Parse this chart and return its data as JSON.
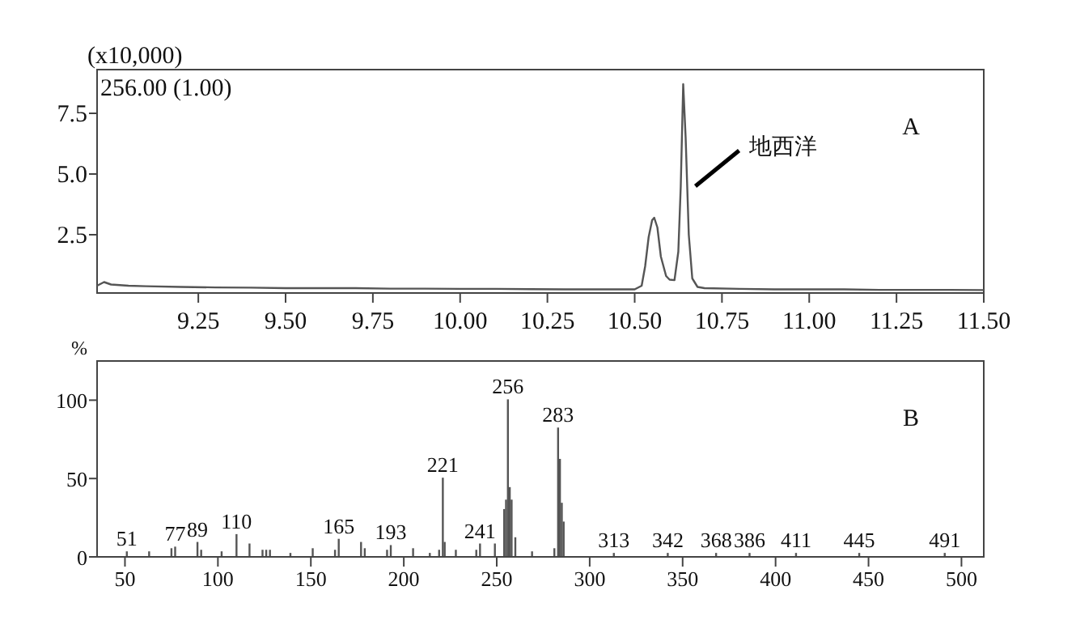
{
  "chart_data": [
    {
      "type": "line",
      "title": "A",
      "ylabel": "(x10,000)",
      "xlim": [
        8.96,
        11.5
      ],
      "ylim": [
        0.1,
        9.3
      ],
      "xticks": [
        {
          "value": 9.25,
          "label": "9.25"
        },
        {
          "value": 9.5,
          "label": "9.50"
        },
        {
          "value": 9.75,
          "label": "9.75"
        },
        {
          "value": 10.0,
          "label": "10.00"
        },
        {
          "value": 10.25,
          "label": "10.25"
        },
        {
          "value": 10.5,
          "label": "10.50"
        },
        {
          "value": 10.75,
          "label": "10.75"
        },
        {
          "value": 11.0,
          "label": "11.00"
        },
        {
          "value": 11.25,
          "label": "11.25"
        },
        {
          "value": 11.5,
          "label": "11.50"
        }
      ],
      "yticks": [
        2.5,
        {
          "value": 5,
          "label": "5.0"
        },
        7.5
      ],
      "annotations": [
        "256.00 (1.00)",
        {
          "text": "地西洋",
          "x": 10.66,
          "y": 4.5
        }
      ],
      "series": [
        {
          "color": "#555555",
          "x": [
            8.96,
            8.98,
            9.0,
            9.05,
            9.1,
            9.2,
            9.3,
            9.4,
            9.5,
            9.6,
            9.7,
            9.8,
            9.9,
            10.0,
            10.1,
            10.2,
            10.3,
            10.4,
            10.45,
            10.5,
            10.52,
            10.53,
            10.54,
            10.55,
            10.556,
            10.565,
            10.575,
            10.59,
            10.6,
            10.614,
            10.625,
            10.632,
            10.639,
            10.646,
            10.655,
            10.665,
            10.68,
            10.7,
            10.8,
            10.9,
            11.0,
            11.1,
            11.2,
            11.3,
            11.4,
            11.5
          ],
          "values": [
            0.4,
            0.55,
            0.45,
            0.4,
            0.38,
            0.35,
            0.33,
            0.32,
            0.3,
            0.3,
            0.3,
            0.28,
            0.28,
            0.27,
            0.27,
            0.26,
            0.25,
            0.25,
            0.25,
            0.25,
            0.4,
            1.2,
            2.4,
            3.1,
            3.2,
            2.8,
            1.6,
            0.8,
            0.65,
            0.63,
            1.8,
            4.5,
            8.7,
            6.5,
            2.5,
            0.7,
            0.35,
            0.3,
            0.27,
            0.25,
            0.25,
            0.25,
            0.23,
            0.23,
            0.23,
            0.22
          ]
        }
      ]
    },
    {
      "type": "bar",
      "title": "B",
      "ylabel": "%",
      "xlim": [
        35,
        512
      ],
      "ylim": [
        0,
        125
      ],
      "xticks": [
        50,
        100,
        150,
        200,
        250,
        300,
        350,
        400,
        450,
        500
      ],
      "yticks": [
        0,
        50,
        100
      ],
      "x": [
        51,
        63,
        75,
        77,
        89,
        91,
        102,
        110,
        117,
        124,
        126,
        128,
        139,
        151,
        163,
        165,
        177,
        179,
        191,
        193,
        205,
        214,
        219,
        221,
        222,
        228,
        239,
        241,
        249,
        254,
        255,
        256,
        257,
        258,
        260,
        269,
        281,
        283,
        284,
        285,
        286,
        313,
        342,
        368,
        386,
        411,
        445,
        491
      ],
      "series": [
        {
          "color": "#555555",
          "values": [
            3,
            3,
            5,
            6,
            9,
            4,
            3,
            14,
            8,
            4,
            4,
            4,
            2,
            5,
            4,
            11,
            9,
            5,
            4,
            7,
            5,
            2,
            4,
            50,
            9,
            4,
            4,
            8,
            8,
            30,
            36,
            100,
            44,
            36,
            12,
            3,
            5,
            82,
            62,
            34,
            22,
            2,
            2,
            2,
            2,
            2,
            2,
            2
          ]
        }
      ],
      "annotations": [
        {
          "text": "51",
          "x": 51,
          "y": 3
        },
        {
          "text": "77",
          "x": 77,
          "y": 6
        },
        {
          "text": "89",
          "x": 89,
          "y": 9
        },
        {
          "text": "110",
          "x": 110,
          "y": 14
        },
        {
          "text": "165",
          "x": 165,
          "y": 11
        },
        {
          "text": "193",
          "x": 193,
          "y": 7
        },
        {
          "text": "221",
          "x": 221,
          "y": 50
        },
        {
          "text": "241",
          "x": 241,
          "y": 8
        },
        {
          "text": "256",
          "x": 256,
          "y": 100
        },
        {
          "text": "283",
          "x": 283,
          "y": 82
        },
        {
          "text": "313",
          "x": 313,
          "y": 2
        },
        {
          "text": "342",
          "x": 342,
          "y": 2
        },
        {
          "text": "368",
          "x": 368,
          "y": 2
        },
        {
          "text": "386",
          "x": 386,
          "y": 2
        },
        {
          "text": "411",
          "x": 411,
          "y": 2
        },
        {
          "text": "445",
          "x": 445,
          "y": 2
        },
        {
          "text": "491",
          "x": 491,
          "y": 2
        }
      ]
    }
  ]
}
